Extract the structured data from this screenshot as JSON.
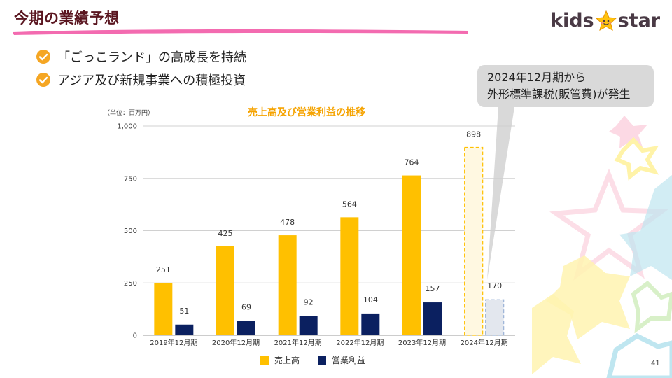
{
  "header": {
    "title": "今期の業績予想",
    "logo_left": "kids",
    "logo_right": "star",
    "title_underline_color": "#f36bb0"
  },
  "bullets": [
    {
      "text": "「ごっこランド」の高成長を持続",
      "icon": "check-circle-icon"
    },
    {
      "text": "アジア及び新規事業への積極投資",
      "icon": "check-circle-icon"
    }
  ],
  "callout": {
    "line1": "2024年12月期から",
    "line2": "外形標準課税(販管費)が発生"
  },
  "unit_label": "（単位：百万円）",
  "page_number": "41",
  "colors": {
    "sales": "#ffc000",
    "profit": "#0b2060",
    "sales_forecast_fill": "#fff8e1",
    "profit_forecast_fill": "#e3e7ee",
    "title_color": "#f5a300"
  },
  "chart_data": {
    "type": "bar",
    "title": "売上高及び営業利益の推移",
    "categories": [
      "2019年12月期",
      "2020年12月期",
      "2021年12月期",
      "2022年12月期",
      "2023年12月期",
      "2024年12月期"
    ],
    "series": [
      {
        "name": "売上高",
        "values": [
          251,
          425,
          478,
          564,
          764,
          898
        ],
        "labels": [
          "251",
          "425",
          "478",
          "564",
          "764",
          "898"
        ]
      },
      {
        "name": "営業利益",
        "values": [
          51,
          69,
          92,
          104,
          157,
          170
        ],
        "labels": [
          "51",
          "69",
          "92",
          "104",
          "157",
          "170"
        ]
      }
    ],
    "forecast_category_index": 5,
    "ylim": [
      0,
      1000
    ],
    "yticks": [
      0,
      250,
      500,
      750,
      1000
    ],
    "ytick_labels": [
      "0",
      "250",
      "500",
      "750",
      "1,000"
    ],
    "grid": true,
    "legend": "bottom"
  }
}
